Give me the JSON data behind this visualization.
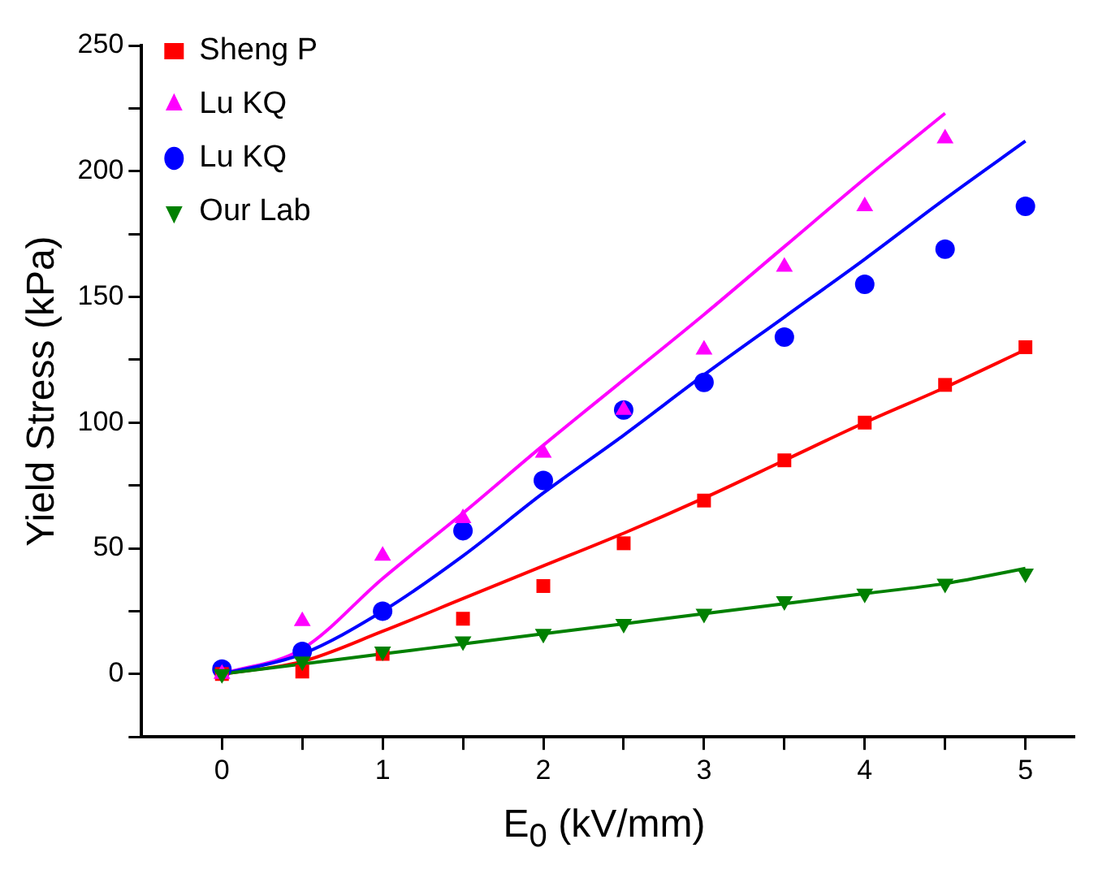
{
  "chart_data": {
    "type": "scatter",
    "xlabel": "E$_{0}$ (kV/mm)",
    "ylabel": "Yield Stress (kPa)",
    "xlim": [
      -0.5,
      5.3
    ],
    "xticks": [
      0,
      {
        "value": 0.5,
        "label": null
      },
      1,
      {
        "value": 1.5,
        "label": null
      },
      2,
      {
        "value": 2.5,
        "label": null
      },
      3,
      {
        "value": 3.5,
        "label": null
      },
      4,
      {
        "value": 4.5,
        "label": null
      },
      5
    ],
    "ylim": [
      -25,
      250
    ],
    "yticks": [
      {
        "value": -25,
        "label": null
      },
      0,
      {
        "value": 25,
        "label": null
      },
      50,
      {
        "value": 75,
        "label": null
      },
      100,
      {
        "value": 125,
        "label": null
      },
      150,
      {
        "value": 175,
        "label": null
      },
      200,
      {
        "value": 225,
        "label": null
      },
      250
    ],
    "grid": false,
    "legend": "top left",
    "series": [
      {
        "name": "Sheng P",
        "color": "#ff0000",
        "marker": "square",
        "x": [
          0,
          0.5,
          1,
          1.5,
          2,
          2.5,
          3,
          3.5,
          4,
          4.5,
          5
        ],
        "values": [
          0,
          1,
          8,
          22,
          35,
          52,
          69,
          85,
          100,
          115,
          130
        ]
      },
      {
        "name": "Lu KQ",
        "color": "#ff00ff",
        "marker": "triangle",
        "x": [
          0,
          0.5,
          1,
          1.5,
          2,
          2.5,
          3,
          3.5,
          4,
          4.5
        ],
        "values": [
          0,
          21,
          47,
          62,
          88,
          105,
          129,
          162,
          186,
          213
        ]
      },
      {
        "name": "Lu KQ",
        "color": "#0000ff",
        "marker": "circle",
        "x": [
          0,
          0.5,
          1,
          1.5,
          2,
          2.5,
          3,
          3.5,
          4,
          4.5,
          5
        ],
        "values": [
          2,
          9,
          25,
          57,
          77,
          105,
          116,
          134,
          155,
          169,
          186
        ]
      },
      {
        "name": "Our Lab",
        "color": "#008000",
        "marker": "triangle-down",
        "x": [
          0,
          0.5,
          1,
          1.5,
          2,
          2.5,
          3,
          3.5,
          4,
          4.5,
          5
        ],
        "values": [
          0,
          5,
          9,
          13,
          16,
          20,
          24,
          29,
          32,
          36,
          40
        ]
      },
      {
        "type": "line",
        "color": "#ff0000",
        "marker": "none",
        "x": [
          0,
          0.5,
          1,
          1.5,
          2,
          2.5,
          3,
          3.5,
          4,
          4.5,
          5
        ],
        "values": [
          0,
          5,
          17,
          30,
          43,
          56,
          70,
          85,
          100,
          114,
          129
        ]
      },
      {
        "type": "line",
        "color": "#ff00ff",
        "marker": "none",
        "x": [
          0,
          0.5,
          1,
          1.5,
          2,
          2.5,
          3,
          3.5,
          4,
          4.5
        ],
        "values": [
          0,
          10,
          38,
          64,
          91,
          117,
          143,
          170,
          197,
          223
        ]
      },
      {
        "type": "line",
        "color": "#0000ff",
        "marker": "none",
        "x": [
          0,
          0.5,
          1,
          1.5,
          2,
          2.5,
          3,
          3.5,
          4,
          4.5,
          5
        ],
        "values": [
          0,
          8,
          25,
          47,
          72,
          95,
          119,
          142,
          165,
          189,
          212
        ]
      },
      {
        "type": "line",
        "color": "#008000",
        "marker": "none",
        "x": [
          0,
          0.5,
          1,
          1.5,
          2,
          2.5,
          3,
          3.5,
          4,
          4.5,
          5
        ],
        "values": [
          0,
          4,
          8,
          12,
          16,
          20,
          24,
          28,
          32,
          36,
          42
        ]
      }
    ]
  }
}
